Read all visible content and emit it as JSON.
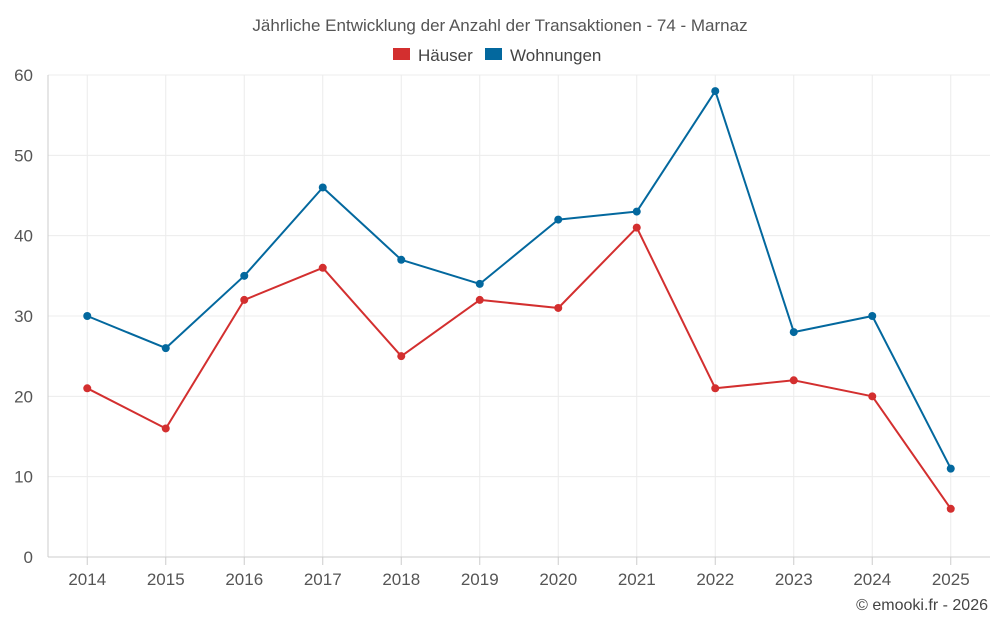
{
  "chart_data": {
    "type": "line",
    "title": "Jährliche Entwicklung der Anzahl der Transaktionen - 74 - Marnaz",
    "categories": [
      "2014",
      "2015",
      "2016",
      "2017",
      "2018",
      "2019",
      "2020",
      "2021",
      "2022",
      "2023",
      "2024",
      "2025"
    ],
    "series": [
      {
        "name": "Häuser",
        "color": "#d32f2f",
        "values": [
          21,
          16,
          32,
          36,
          25,
          32,
          31,
          41,
          21,
          22,
          20,
          6
        ]
      },
      {
        "name": "Wohnungen",
        "color": "#03689e",
        "values": [
          30,
          26,
          35,
          46,
          37,
          34,
          42,
          43,
          58,
          28,
          30,
          11
        ]
      }
    ],
    "ylim": [
      0,
      60
    ],
    "yticks": [
      0,
      10,
      20,
      30,
      40,
      50,
      60
    ],
    "grid": true,
    "legend": "top-center",
    "xlabel": "",
    "ylabel": ""
  },
  "credit": "© emooki.fr - 2026"
}
